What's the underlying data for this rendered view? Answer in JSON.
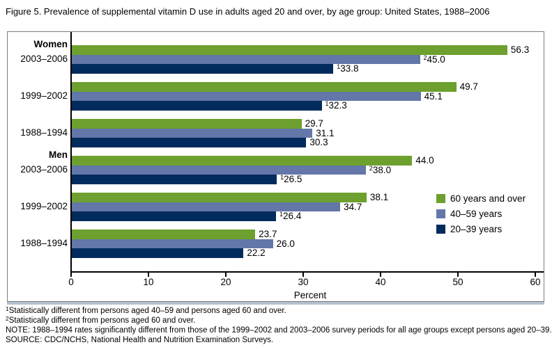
{
  "title": "Figure 5. Prevalence of supplemental vitamin D use in adults aged 20 and over, by age group: United States, 1988–2006",
  "chart_data": {
    "type": "bar",
    "orientation": "horizontal",
    "xlabel": "Percent",
    "xlim": [
      0,
      60
    ],
    "xticks": [
      0,
      10,
      20,
      30,
      40,
      50,
      60
    ],
    "grid": false,
    "legend_position": "right-middle",
    "legend": [
      {
        "label": "60 years and over",
        "color": "#6da02e"
      },
      {
        "label": "40–59 years",
        "color": "#6377a8"
      },
      {
        "label": "20–39 years",
        "color": "#002b5c"
      }
    ],
    "groups": [
      {
        "section": "Women",
        "period": "2003–2006",
        "values": [
          {
            "series": "60 years and over",
            "value": 56.3,
            "label": "56.3",
            "sup": ""
          },
          {
            "series": "40–59 years",
            "value": 45.0,
            "label": "45.0",
            "sup": "2"
          },
          {
            "series": "20–39 years",
            "value": 33.8,
            "label": "33.8",
            "sup": "1"
          }
        ]
      },
      {
        "section": "",
        "period": "1999–2002",
        "values": [
          {
            "series": "60 years and over",
            "value": 49.7,
            "label": "49.7",
            "sup": ""
          },
          {
            "series": "40–59 years",
            "value": 45.1,
            "label": "45.1",
            "sup": ""
          },
          {
            "series": "20–39 years",
            "value": 32.3,
            "label": "32.3",
            "sup": "1"
          }
        ]
      },
      {
        "section": "",
        "period": "1988–1994",
        "values": [
          {
            "series": "60 years and over",
            "value": 29.7,
            "label": "29.7",
            "sup": ""
          },
          {
            "series": "40–59 years",
            "value": 31.1,
            "label": "31.1",
            "sup": ""
          },
          {
            "series": "20–39 years",
            "value": 30.3,
            "label": "30.3",
            "sup": ""
          }
        ]
      },
      {
        "section": "Men",
        "period": "2003–2006",
        "values": [
          {
            "series": "60 years and over",
            "value": 44.0,
            "label": "44.0",
            "sup": ""
          },
          {
            "series": "40–59 years",
            "value": 38.0,
            "label": "38.0",
            "sup": "2"
          },
          {
            "series": "20–39 years",
            "value": 26.5,
            "label": "26.5",
            "sup": "1"
          }
        ]
      },
      {
        "section": "",
        "period": "1999–2002",
        "values": [
          {
            "series": "60 years and over",
            "value": 38.1,
            "label": "38.1",
            "sup": ""
          },
          {
            "series": "40–59 years",
            "value": 34.7,
            "label": "34.7",
            "sup": ""
          },
          {
            "series": "20–39 years",
            "value": 26.4,
            "label": "26.4",
            "sup": "1"
          }
        ]
      },
      {
        "section": "",
        "period": "1988–1994",
        "values": [
          {
            "series": "60 years and over",
            "value": 23.7,
            "label": "23.7",
            "sup": ""
          },
          {
            "series": "40–59 years",
            "value": 26.0,
            "label": "26.0",
            "sup": ""
          },
          {
            "series": "20–39 years",
            "value": 22.2,
            "label": "22.2",
            "sup": ""
          }
        ]
      }
    ]
  },
  "footnotes": [
    {
      "sup": "1",
      "text": "Statistically different from persons aged 40–59 and persons aged 60 and over."
    },
    {
      "sup": "2",
      "text": "Statistically different from persons aged 60 and over."
    },
    {
      "sup": "",
      "text": "NOTE: 1988–1994 rates significantly different from those of the 1999–2002 and 2003–2006 survey periods for all age groups except persons aged 20–39."
    },
    {
      "sup": "",
      "text": "SOURCE: CDC/NCHS, National Health and Nutrition Examination Surveys."
    }
  ]
}
